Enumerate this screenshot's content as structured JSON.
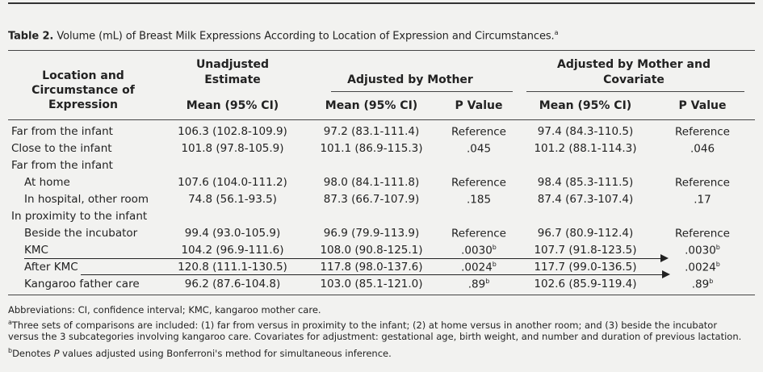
{
  "table": {
    "label": "Table 2.",
    "caption": "Volume (mL) of Breast Milk Expressions According to Location of Expression and Circumstances.",
    "caption_sup": "a",
    "headers": {
      "col1": [
        "Location and",
        "Circumstance of",
        "Expression"
      ],
      "group_unadjusted": [
        "Unadjusted",
        "Estimate"
      ],
      "group_mother": "Adjusted by Mother",
      "group_covariate": [
        "Adjusted by Mother and",
        "Covariate"
      ],
      "mean_ci": "Mean (95% CI)",
      "p_value": "P Value"
    },
    "rows": [
      {
        "label": "Far from the infant",
        "indent": false,
        "u": "106.3 (102.8-109.9)",
        "m": "97.2 (83.1-111.4)",
        "mp": "Reference",
        "mp_sup": "",
        "c": "97.4 (84.3-110.5)",
        "cp": "Reference",
        "cp_sup": ""
      },
      {
        "label": "Close to the infant",
        "indent": false,
        "u": "101.8 (97.8-105.9)",
        "m": "101.1 (86.9-115.3)",
        "mp": ".045",
        "mp_sup": "",
        "c": "101.2 (88.1-114.3)",
        "cp": ".046",
        "cp_sup": ""
      },
      {
        "label": "Far from the infant",
        "indent": false,
        "u": "",
        "m": "",
        "mp": "",
        "mp_sup": "",
        "c": "",
        "cp": "",
        "cp_sup": ""
      },
      {
        "label": "At home",
        "indent": true,
        "u": "107.6 (104.0-111.2)",
        "m": "98.0 (84.1-111.8)",
        "mp": "Reference",
        "mp_sup": "",
        "c": "98.4 (85.3-111.5)",
        "cp": "Reference",
        "cp_sup": ""
      },
      {
        "label": "In hospital, other room",
        "indent": true,
        "u": "74.8 (56.1-93.5)",
        "m": "87.3 (66.7-107.9)",
        "mp": ".185",
        "mp_sup": "",
        "c": "87.4 (67.3-107.4)",
        "cp": ".17",
        "cp_sup": ""
      },
      {
        "label": "In proximity to the infant",
        "indent": false,
        "u": "",
        "m": "",
        "mp": "",
        "mp_sup": "",
        "c": "",
        "cp": "",
        "cp_sup": ""
      },
      {
        "label": "Beside the incubator",
        "indent": true,
        "u": "99.4 (93.0-105.9)",
        "m": "96.9 (79.9-113.9)",
        "mp": "Reference",
        "mp_sup": "",
        "c": "96.7 (80.9-112.4)",
        "cp": "Reference",
        "cp_sup": ""
      },
      {
        "label": "KMC",
        "indent": true,
        "u": "104.2 (96.9-111.6)",
        "m": "108.0 (90.8-125.1)",
        "mp": ".0030",
        "mp_sup": "b",
        "c": "107.7 (91.8-123.5)",
        "cp": ".0030",
        "cp_sup": "b"
      },
      {
        "label": "After KMC",
        "indent": true,
        "u": "120.8 (111.1-130.5)",
        "m": "117.8 (98.0-137.6)",
        "mp": ".0024",
        "mp_sup": "b",
        "c": "117.7 (99.0-136.5)",
        "cp": ".0024",
        "cp_sup": "b"
      },
      {
        "label": "Kangaroo father care",
        "indent": true,
        "u": "96.2 (87.6-104.8)",
        "m": "103.0 (85.1-121.0)",
        "mp": ".89",
        "mp_sup": "b",
        "c": "102.6 (85.9-119.4)",
        "cp": ".89",
        "cp_sup": "b"
      }
    ],
    "footnotes": {
      "abbrev": "Abbreviations: CI, confidence interval; KMC, kangaroo mother care.",
      "a_sup": "a",
      "a_line1": "Three sets of comparisons are included: (1) far from versus in proximity to the infant; (2) at home versus in another room; and (3) beside the incubator",
      "a_line2": "versus the 3 subcategories involving kangaroo care. Covariates for adjustment: gestational age, birth weight, and number and duration of previous lactation.",
      "b_sup": "b",
      "b_pre": "Denotes ",
      "b_italic": "P",
      "b_post": " values adjusted using Bonferroni's method for simultaneous inference."
    }
  }
}
